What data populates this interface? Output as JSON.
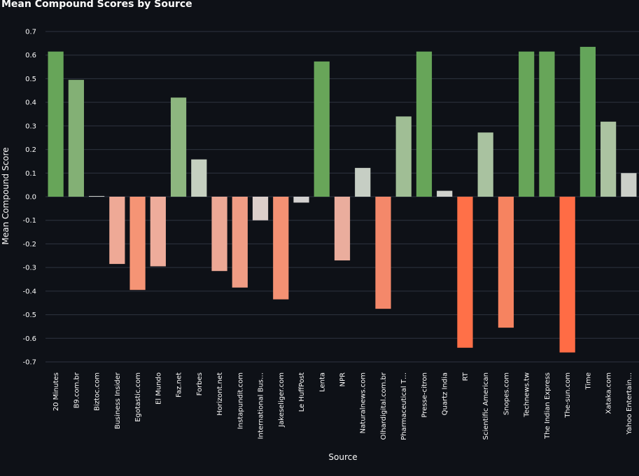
{
  "chart_data": {
    "type": "bar",
    "title": "Mean Compound Scores by Source",
    "xlabel": "Source",
    "ylabel": "Mean Compound Score",
    "ylim": [
      -0.72,
      0.72
    ],
    "yticks": [
      0.7,
      0.6,
      0.5,
      0.4,
      0.3,
      0.2,
      0.1,
      0.0,
      -0.1,
      -0.2,
      -0.3,
      -0.4,
      -0.5,
      -0.6,
      -0.7
    ],
    "ytick_labels": [
      "0.7",
      "0.6",
      "0.5",
      "0.4",
      "0.3",
      "0.2",
      "0.1",
      "0.0",
      "-0.1",
      "-0.2",
      "-0.3",
      "-0.4",
      "-0.5",
      "-0.6",
      "-0.7"
    ],
    "grid": true,
    "categories": [
      "20 Minutes",
      "B9.com.br",
      "Biztoc.com",
      "Business Insider",
      "Egotastic.com",
      "El Mundo",
      "Faz.net",
      "Forbes",
      "Horizont.net",
      "Instapundit.com",
      "International Bus…",
      "Jakeseliger.com",
      "Le HuffPost",
      "Lenta",
      "NPR",
      "Naturalnews.com",
      "Olhardigital.com.br",
      "Pharmaceutical T…",
      "Presse-citron",
      "Quartz India",
      "RT",
      "Scientific American",
      "Snopes.com",
      "Technews.tw",
      "The Indian Express",
      "The-sun.com",
      "Time",
      "Xataka.com",
      "Yahoo Entertain…"
    ],
    "values": [
      0.615,
      0.495,
      0.003,
      -0.285,
      -0.395,
      -0.295,
      0.42,
      0.158,
      -0.315,
      -0.385,
      -0.1,
      -0.435,
      -0.025,
      0.573,
      -0.27,
      0.122,
      -0.475,
      0.34,
      0.615,
      0.025,
      -0.64,
      0.272,
      -0.555,
      0.615,
      0.615,
      -0.66,
      0.635,
      0.318,
      0.1
    ],
    "colors": [
      "#67a559",
      "#83b075",
      "#c9cdc8",
      "#eea996",
      "#f59475",
      "#eeac9b",
      "#8db67f",
      "#c5d0c0",
      "#eca895",
      "#f09c84",
      "#dccfca",
      "#f49173",
      "#d3d1d0",
      "#68a559",
      "#eaad9d",
      "#c6cec4",
      "#f4886a",
      "#a0be95",
      "#67a559",
      "#d0d2cd",
      "#ff7048",
      "#a9c2a0",
      "#f68360",
      "#67a559",
      "#67a559",
      "#ff6c45",
      "#64a55a",
      "#abc3a1",
      "#cbcfc8"
    ]
  }
}
